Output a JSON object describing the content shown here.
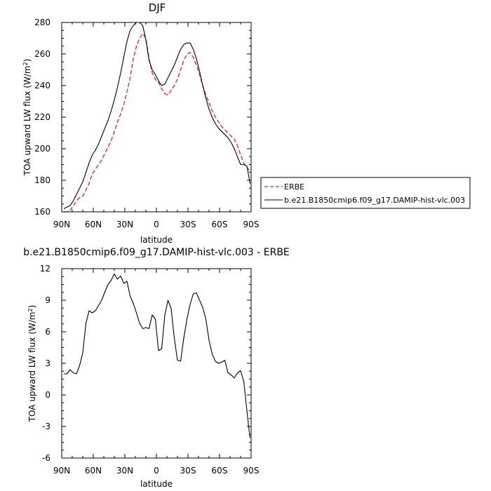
{
  "chart_data": [
    {
      "type": "line",
      "title": "DJF",
      "xlabel": "latitude",
      "ylabel": "TOA upward LW flux (W/m",
      "ylabel_sup": "2",
      "ylabel_tail": ")",
      "xlim": [
        90,
        -90
      ],
      "ylim": [
        160,
        280
      ],
      "xticks": [
        {
          "value": 90,
          "label": "90N"
        },
        {
          "value": 60,
          "label": "60N"
        },
        {
          "value": 30,
          "label": "30N"
        },
        {
          "value": 0,
          "label": "0"
        },
        {
          "value": -30,
          "label": "30S"
        },
        {
          "value": -60,
          "label": "60S"
        },
        {
          "value": -90,
          "label": "90S"
        }
      ],
      "yticks": [
        160,
        180,
        200,
        220,
        240,
        260,
        280
      ],
      "grid": false,
      "legend_position": "right",
      "series": [
        {
          "name": "ERBE",
          "color": "#e8202a",
          "style": "dashed",
          "x": [
            88,
            85,
            82,
            79,
            76,
            73,
            70,
            67,
            64,
            61,
            58,
            55,
            52,
            49,
            46,
            43,
            40,
            37,
            34,
            31,
            28,
            25,
            22,
            19,
            16,
            13,
            10,
            7,
            4,
            1,
            -2,
            -5,
            -8,
            -11,
            -14,
            -17,
            -20,
            -23,
            -26,
            -29,
            -32,
            -35,
            -38,
            -41,
            -44,
            -47,
            -50,
            -53,
            -56,
            -59,
            -62,
            -65,
            -68,
            -71,
            -74,
            -77,
            -80,
            -83,
            -86,
            -89
          ],
          "y": [
            160,
            160,
            161,
            164,
            167,
            169,
            170,
            174,
            178,
            184,
            187,
            190,
            193,
            197,
            201,
            205,
            211,
            217,
            222,
            228,
            236,
            245,
            257,
            265,
            270,
            273,
            270,
            257,
            248,
            244,
            242,
            238,
            235,
            234,
            237,
            240,
            244,
            250,
            256,
            260,
            261,
            258,
            253,
            247,
            240,
            234,
            229,
            224,
            220,
            217,
            214,
            212,
            210,
            208,
            206,
            202,
            196,
            191,
            188,
            186
          ]
        },
        {
          "name": "b.e21.B1850cmip6.f09_g17.DAMIP-hist-vlc.003",
          "color": "#000000",
          "style": "solid",
          "x": [
            88,
            85,
            82,
            79,
            76,
            73,
            70,
            67,
            64,
            61,
            58,
            55,
            52,
            49,
            46,
            43,
            40,
            37,
            34,
            31,
            28,
            25,
            22,
            19,
            16,
            13,
            10,
            7,
            4,
            1,
            -2,
            -5,
            -8,
            -11,
            -14,
            -17,
            -20,
            -23,
            -26,
            -29,
            -32,
            -35,
            -38,
            -41,
            -44,
            -47,
            -50,
            -53,
            -56,
            -59,
            -62,
            -65,
            -68,
            -71,
            -74,
            -77,
            -80,
            -83,
            -86,
            -89
          ],
          "y": [
            162,
            163,
            164,
            167,
            171,
            175,
            179,
            185,
            191,
            196,
            199,
            203,
            208,
            213,
            218,
            224,
            231,
            239,
            248,
            258,
            268,
            275,
            278,
            280,
            280,
            278,
            269,
            256,
            250,
            247,
            243,
            240,
            241,
            245,
            249,
            253,
            258,
            263,
            266,
            267,
            267,
            263,
            257,
            249,
            240,
            232,
            225,
            220,
            216,
            213,
            211,
            209,
            207,
            204,
            200,
            195,
            190,
            190,
            189,
            178
          ]
        }
      ]
    },
    {
      "type": "line",
      "title": "b.e21.B1850cmip6.f09_g17.DAMIP-hist-vlc.003 - ERBE",
      "xlabel": "latitude",
      "ylabel": "TOA upward LW flux (W/m",
      "ylabel_sup": "2",
      "ylabel_tail": ")",
      "xlim": [
        90,
        -90
      ],
      "ylim": [
        -6,
        12
      ],
      "xticks": [
        {
          "value": 90,
          "label": "90N"
        },
        {
          "value": 60,
          "label": "60N"
        },
        {
          "value": 30,
          "label": "30N"
        },
        {
          "value": 0,
          "label": "0"
        },
        {
          "value": -30,
          "label": "30S"
        },
        {
          "value": -60,
          "label": "60S"
        },
        {
          "value": -90,
          "label": "90S"
        }
      ],
      "yticks": [
        -6,
        -3,
        0,
        3,
        6,
        9,
        12
      ],
      "grid": false,
      "series": [
        {
          "color": "#000000",
          "style": "solid",
          "x": [
            88,
            85,
            82,
            79,
            76,
            73,
            70,
            67,
            64,
            61,
            58,
            55,
            52,
            49,
            46,
            43,
            40,
            37,
            34,
            31,
            28,
            25,
            22,
            19,
            16,
            13,
            10,
            7,
            4,
            1,
            -2,
            -5,
            -8,
            -11,
            -14,
            -17,
            -20,
            -23,
            -26,
            -29,
            -32,
            -35,
            -38,
            -41,
            -44,
            -47,
            -50,
            -53,
            -56,
            -59,
            -62,
            -65,
            -68,
            -71,
            -74,
            -77,
            -80,
            -83,
            -86,
            -88,
            -89
          ],
          "y": [
            2.0,
            2.0,
            2.4,
            2.1,
            2.0,
            2.8,
            4.0,
            6.8,
            8.0,
            7.8,
            8.0,
            8.5,
            9.0,
            9.8,
            10.5,
            10.9,
            11.5,
            11.0,
            11.3,
            10.6,
            10.8,
            9.4,
            8.7,
            7.8,
            6.8,
            6.3,
            6.4,
            6.3,
            7.6,
            7.2,
            4.2,
            4.4,
            7.6,
            9.0,
            8.2,
            5.4,
            3.3,
            3.2,
            5.4,
            7.2,
            8.6,
            9.6,
            9.7,
            9.0,
            8.3,
            7.2,
            5.2,
            3.9,
            3.2,
            3.0,
            3.1,
            3.3,
            2.1,
            1.9,
            1.6,
            2.1,
            2.3,
            1.3,
            -1.5,
            -3.3,
            -4.1
          ]
        }
      ]
    }
  ]
}
